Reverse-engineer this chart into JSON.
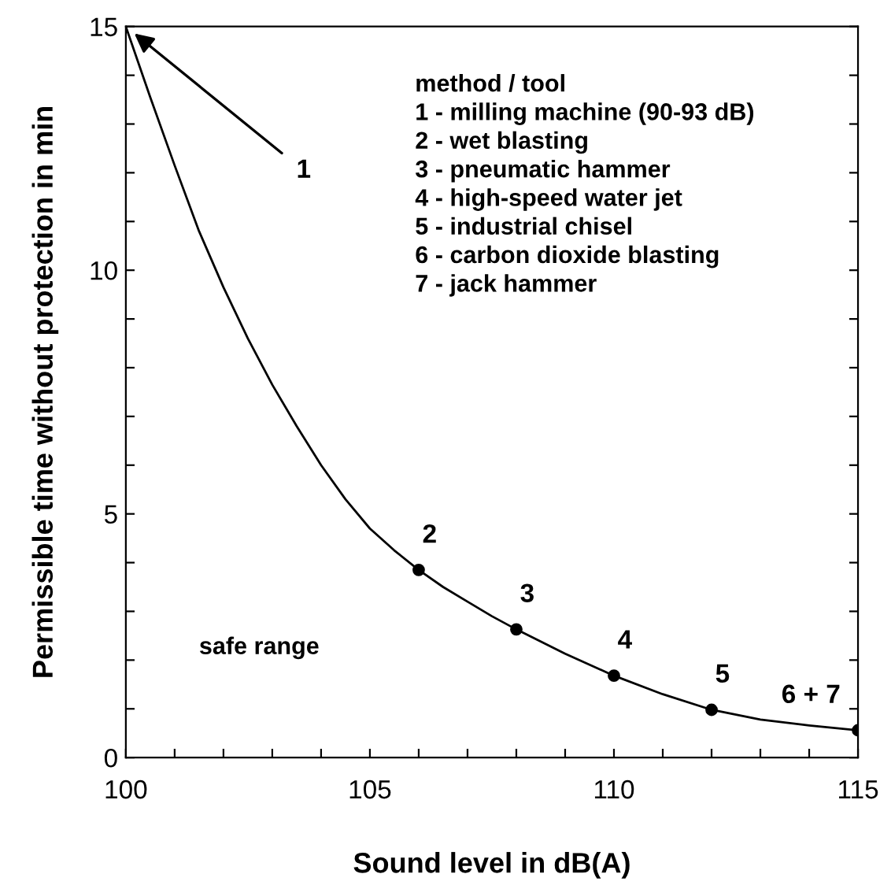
{
  "chart_data": {
    "type": "line",
    "xlabel": "Sound level in dB(A)",
    "ylabel": "Permissible time without protection in min",
    "xlim": [
      100,
      115
    ],
    "ylim": [
      0,
      15
    ],
    "xticks": [
      100,
      {
        "value": 101,
        "label": null
      },
      {
        "value": 102,
        "label": null
      },
      {
        "value": 103,
        "label": null
      },
      {
        "value": 104,
        "label": null
      },
      105,
      {
        "value": 106,
        "label": null
      },
      {
        "value": 107,
        "label": null
      },
      {
        "value": 108,
        "label": null
      },
      {
        "value": 109,
        "label": null
      },
      110,
      {
        "value": 111,
        "label": null
      },
      {
        "value": 112,
        "label": null
      },
      {
        "value": 113,
        "label": null
      },
      {
        "value": 114,
        "label": null
      },
      115
    ],
    "yticks": [
      0,
      {
        "value": 1,
        "label": null
      },
      {
        "value": 2,
        "label": null
      },
      {
        "value": 3,
        "label": null
      },
      {
        "value": 4,
        "label": null
      },
      5,
      {
        "value": 6,
        "label": null
      },
      {
        "value": 7,
        "label": null
      },
      {
        "value": 8,
        "label": null
      },
      {
        "value": 9,
        "label": null
      },
      10,
      {
        "value": 11,
        "label": null
      },
      {
        "value": 12,
        "label": null
      },
      {
        "value": 13,
        "label": null
      },
      {
        "value": 14,
        "label": null
      },
      15
    ],
    "grid": false,
    "legend": false,
    "series": [
      {
        "color": "#000000",
        "marker": "none",
        "line_style": "solid",
        "x": [
          100,
          100.5,
          101,
          101.5,
          102,
          102.5,
          103,
          103.5,
          104,
          104.5,
          105,
          105.5,
          106,
          106.5,
          107,
          107.5,
          108,
          109,
          110,
          111,
          112,
          113,
          114,
          115
        ],
        "values": [
          15,
          13.55,
          12.15,
          10.8,
          9.65,
          8.6,
          7.65,
          6.8,
          6.0,
          5.3,
          4.7,
          4.25,
          3.85,
          3.5,
          3.2,
          2.9,
          2.63,
          2.13,
          1.68,
          1.3,
          0.98,
          0.78,
          0.66,
          0.56
        ]
      },
      {
        "type": "scatter",
        "color": "#000000",
        "marker": "circle",
        "x": [
          106,
          108,
          110,
          112,
          115
        ],
        "values": [
          3.85,
          2.63,
          1.68,
          0.98,
          0.56
        ]
      }
    ],
    "annotations": [
      "method / tool\n1 - milling machine (90-93 dB)\n2 - wet blasting\n3 - pneumatic hammer\n4 - high-speed water jet\n5 - industrial chisel\n6 - carbon dioxide blasting\n7 - jack hammer",
      "safe range",
      {
        "text": "1",
        "x": 100,
        "y": 15
      },
      {
        "text": "2",
        "x": 106,
        "y": 3.85
      },
      {
        "text": "3",
        "x": 108,
        "y": 2.63
      },
      {
        "text": "4",
        "x": 110,
        "y": 1.68
      },
      {
        "text": "5",
        "x": 112,
        "y": 0.98
      },
      {
        "text": "6 + 7",
        "x": 115,
        "y": 0.56
      }
    ]
  }
}
